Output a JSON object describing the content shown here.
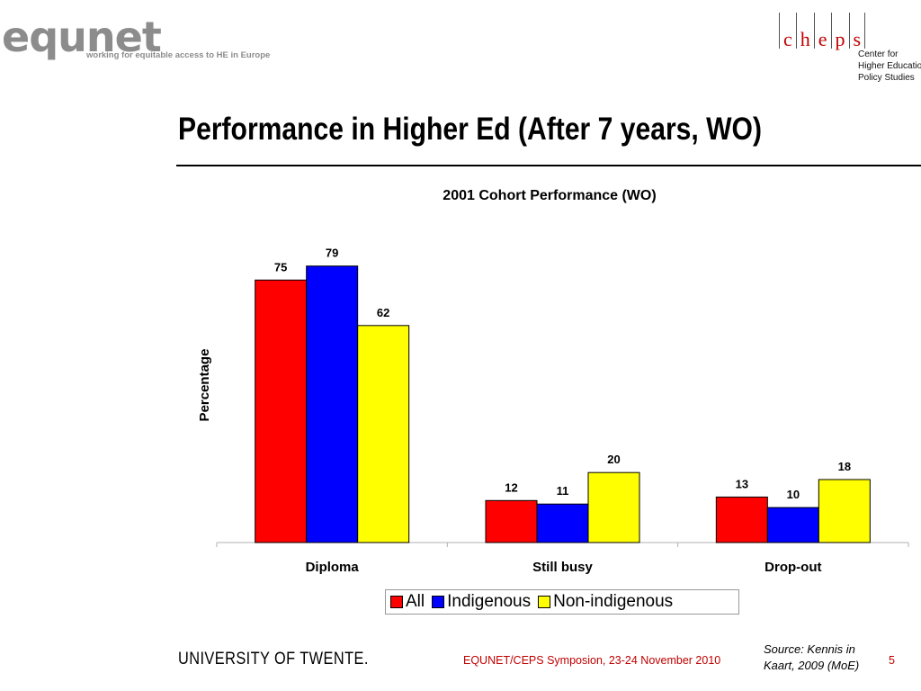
{
  "header": {
    "left_logo_text": "equnet",
    "left_logo_tagline": "working for equitable access to HE in Europe",
    "right_logo_letters": [
      "c",
      "h",
      "e",
      "p",
      "s"
    ],
    "right_logo_desc": [
      "Center for",
      "Higher Education",
      "Policy Studies"
    ]
  },
  "slide": {
    "title": "Performance in Higher Ed (After 7 years, WO)"
  },
  "chart_data": {
    "type": "bar",
    "title": "2001 Cohort Performance (WO)",
    "xlabel": "",
    "ylabel": "Percentage",
    "categories": [
      "Diploma",
      "Still busy",
      "Drop-out"
    ],
    "series": [
      {
        "name": "All",
        "values": [
          75,
          12,
          13
        ],
        "color": "#ff0000"
      },
      {
        "name": "Indigenous",
        "values": [
          79,
          11,
          10
        ],
        "color": "#0000ff"
      },
      {
        "name": "Non-indigenous",
        "values": [
          62,
          20,
          18
        ],
        "color": "#ffff00"
      }
    ],
    "ylim": [
      0,
      80
    ],
    "grid": false,
    "legend_position": "bottom"
  },
  "footer": {
    "university": "UNIVERSITY OF TWENTE.",
    "event": "EQUNET/CEPS Symposion, 23-24 November 2010",
    "source_line1": "Source: Kennis in",
    "source_line2": "Kaart, 2009 (MoE)",
    "page_number": "5"
  }
}
